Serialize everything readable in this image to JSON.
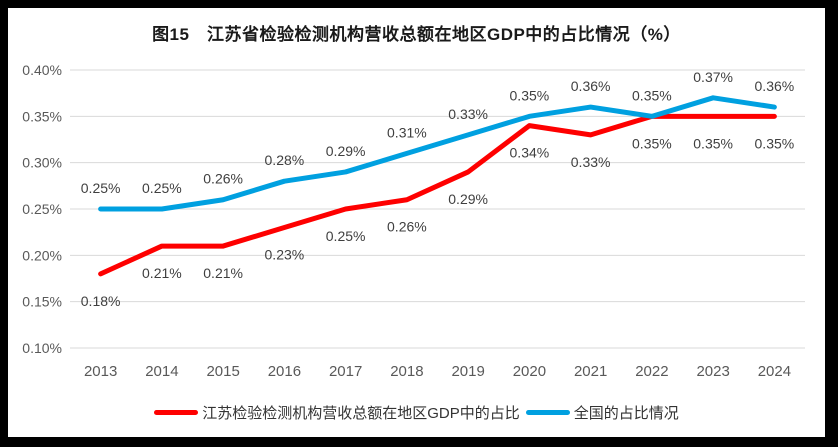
{
  "page": {
    "title": "图15　江苏省检验检测机构营收总额在地区GDP中的占比情况（%）"
  },
  "chart_data": {
    "type": "line",
    "title": "图15　江苏省检验检测机构营收总额在地区GDP中的占比情况（%）",
    "categories": [
      "2013",
      "2014",
      "2015",
      "2016",
      "2017",
      "2018",
      "2019",
      "2020",
      "2021",
      "2022",
      "2023",
      "2024"
    ],
    "series": [
      {
        "key": "jiangsu",
        "name": "江苏检验检测机构营收总额在地区GDP中的占比",
        "color": "#FE0000",
        "label_position": "below",
        "values": [
          0.18,
          0.21,
          0.21,
          0.23,
          0.25,
          0.26,
          0.29,
          0.34,
          0.33,
          0.35,
          0.35,
          0.35
        ],
        "labels": [
          "0.18%",
          "0.21%",
          "0.21%",
          "0.23%",
          "0.25%",
          "0.26%",
          "0.29%",
          "0.34%",
          "0.33%",
          "0.35%",
          "0.35%",
          "0.35%"
        ]
      },
      {
        "key": "national",
        "name": "全国的占比情况",
        "color": "#00A0E0",
        "label_position": "above",
        "values": [
          0.25,
          0.25,
          0.26,
          0.28,
          0.29,
          0.31,
          0.33,
          0.35,
          0.36,
          0.35,
          0.37,
          0.36
        ],
        "labels": [
          "0.25%",
          "0.25%",
          "0.26%",
          "0.28%",
          "0.29%",
          "0.31%",
          "0.33%",
          "0.35%",
          "0.36%",
          "0.35%",
          "0.37%",
          "0.36%"
        ]
      }
    ],
    "xlabel": "",
    "ylabel": "",
    "ylim": [
      0.1,
      0.4
    ],
    "y_tick_step": 0.05,
    "y_tick_labels": [
      "0.40%",
      "0.35%",
      "0.30%",
      "0.25%",
      "0.20%",
      "0.15%",
      "0.10%"
    ],
    "grid": true,
    "legend_position": "bottom",
    "colors": {
      "gridline": "#D9D9D9",
      "axis_text": "#595959",
      "data_label": "#3F3F3F"
    }
  },
  "legend": {
    "items": [
      {
        "label": "江苏检验检测机构营收总额在地区GDP中的占比"
      },
      {
        "label": "全国的占比情况"
      }
    ]
  }
}
